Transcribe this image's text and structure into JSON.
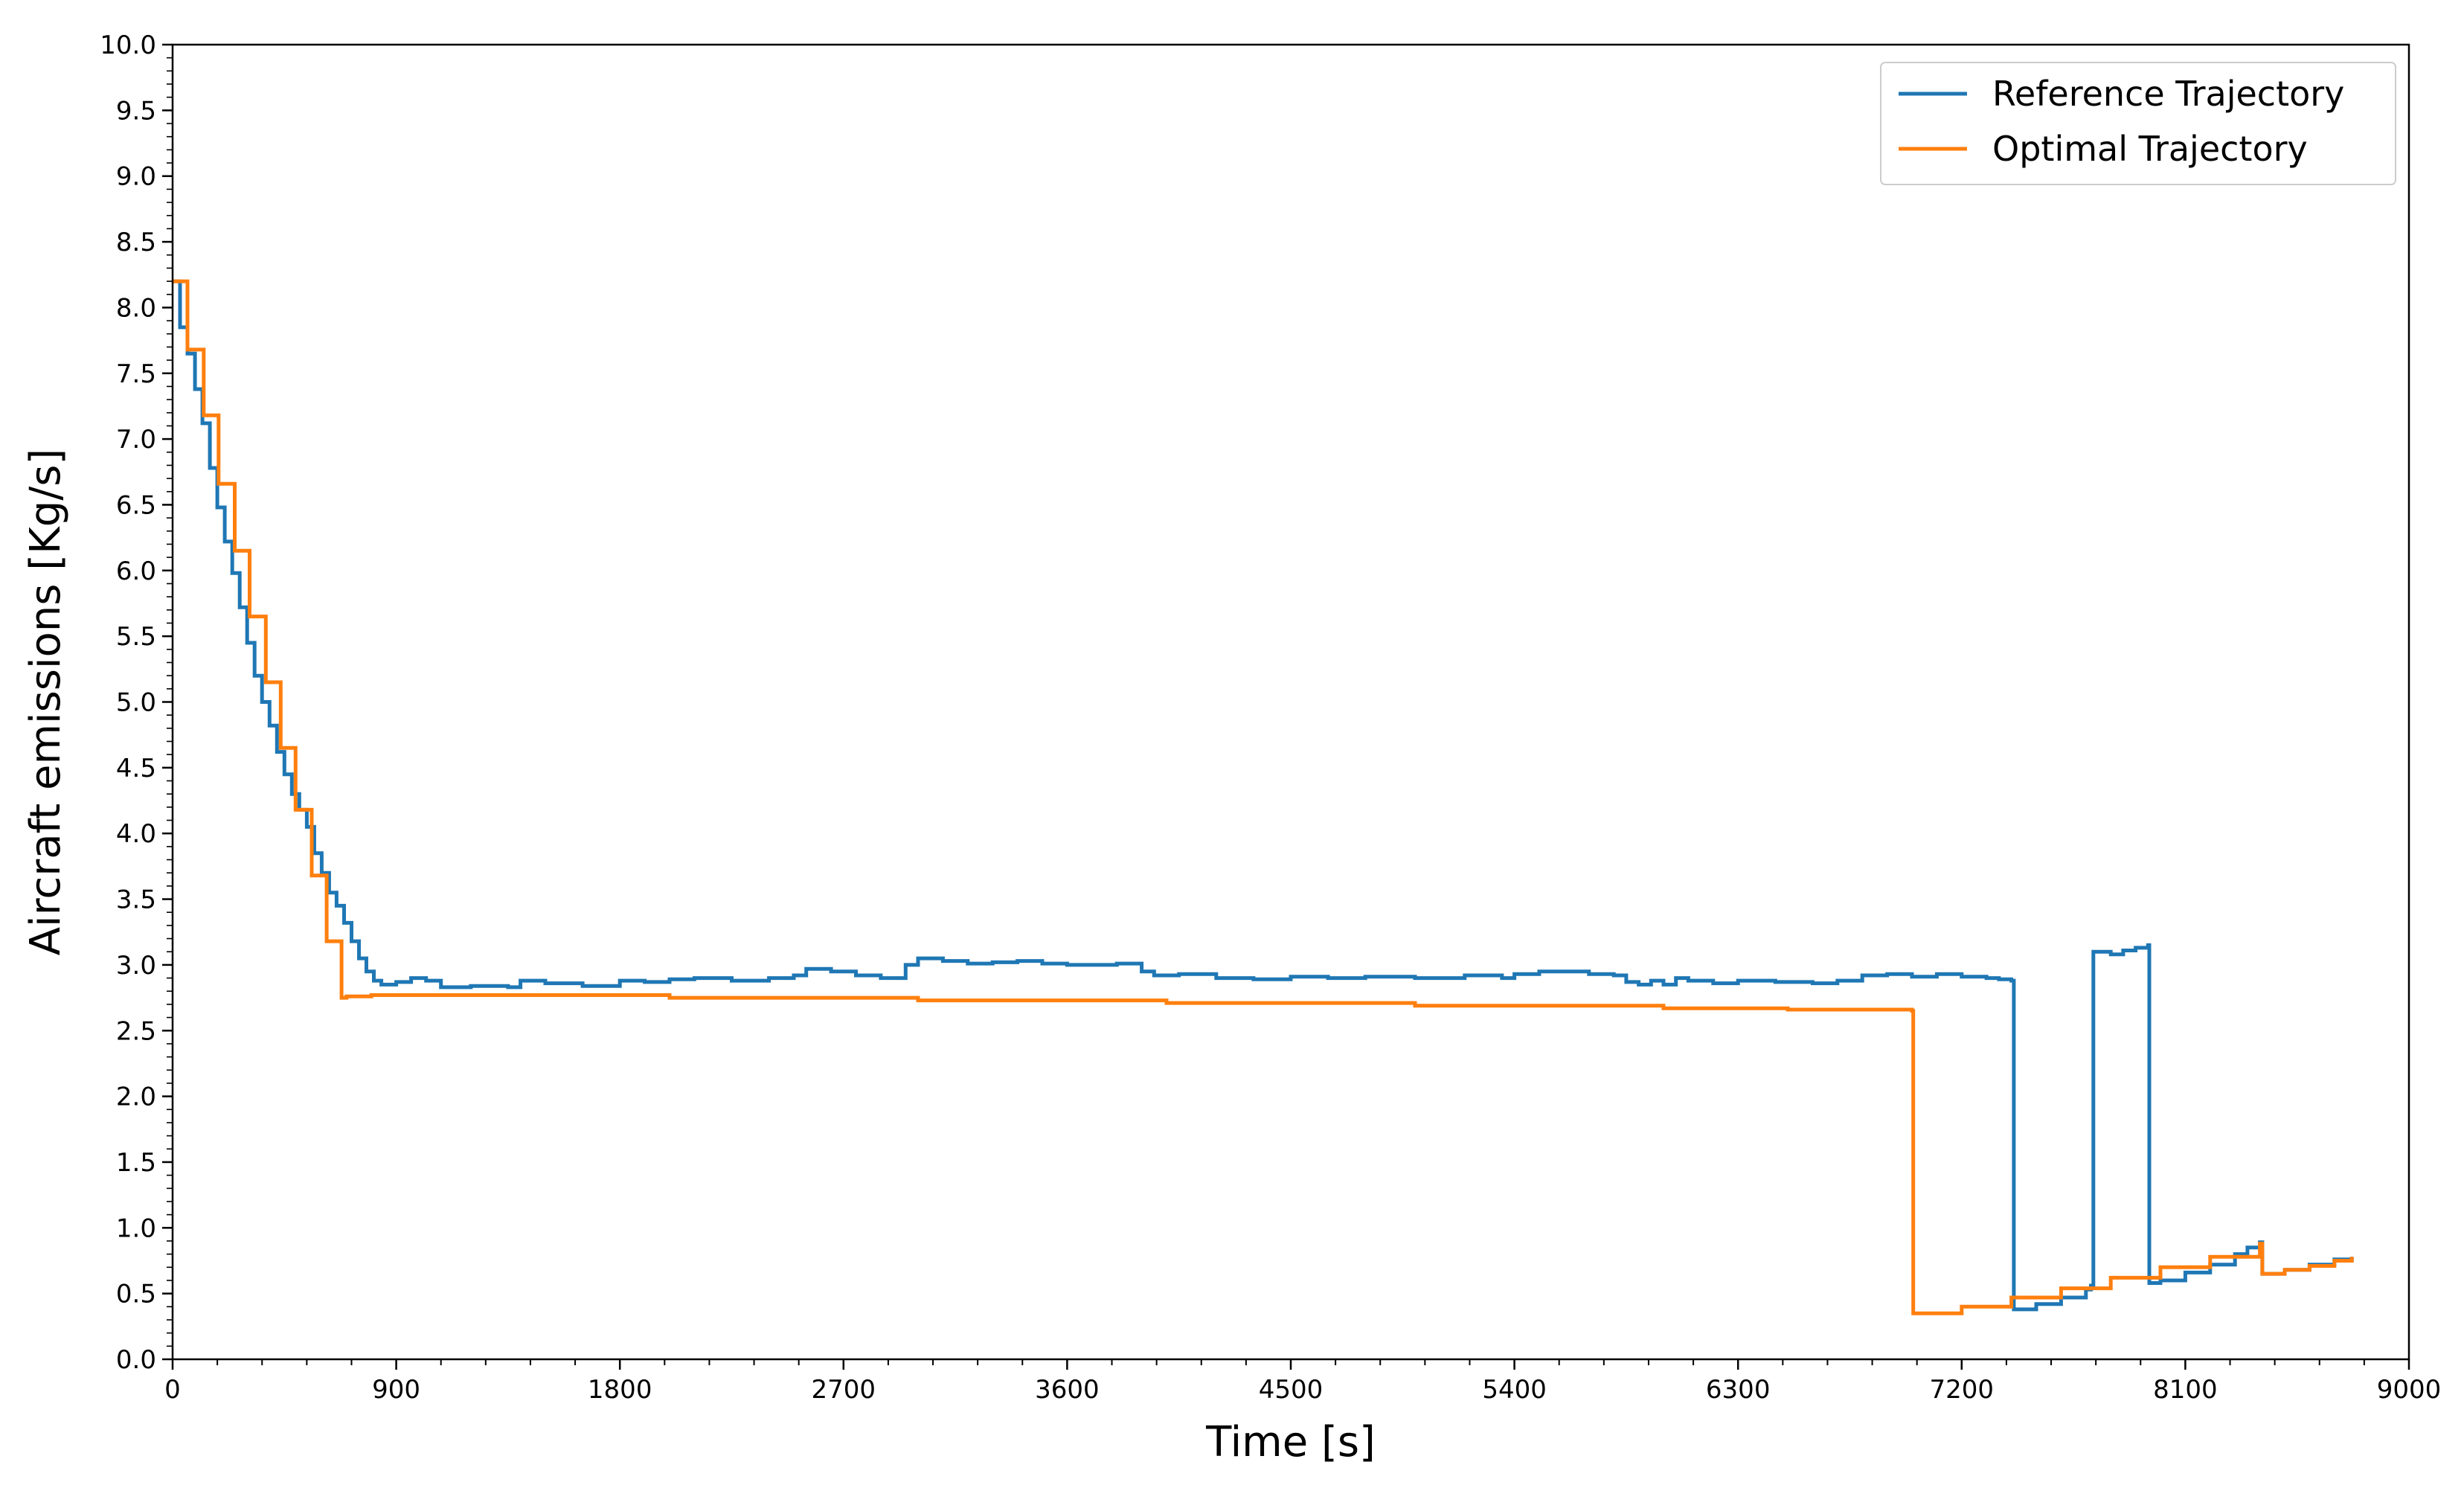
{
  "chart_data": {
    "type": "line",
    "title": "",
    "xlabel": "Time [s]",
    "ylabel": "Aircraft emissions [Kg/s]",
    "xlim": [
      0,
      9000
    ],
    "ylim": [
      0,
      10
    ],
    "xticks": [
      0,
      900,
      1800,
      2700,
      3600,
      4500,
      5400,
      6300,
      7200,
      8100,
      9000
    ],
    "xtick_labels": [
      "0",
      "900",
      "1800",
      "2700",
      "3600",
      "4500",
      "5400",
      "6300",
      "7200",
      "8100",
      "9000"
    ],
    "yticks": [
      0,
      0.5,
      1,
      1.5,
      2,
      2.5,
      3,
      3.5,
      4,
      4.5,
      5,
      5.5,
      6,
      6.5,
      7,
      7.5,
      8,
      8.5,
      9,
      9.5,
      10
    ],
    "ytick_labels": [
      "0.0",
      "0.5",
      "1.0",
      "1.5",
      "2.0",
      "2.5",
      "3.0",
      "3.5",
      "4.0",
      "4.5",
      "5.0",
      "5.5",
      "6.0",
      "6.5",
      "7.0",
      "7.5",
      "8.0",
      "8.5",
      "9.0",
      "9.5",
      "10.0"
    ],
    "grid": false,
    "legend_position": "top-right",
    "series": [
      {
        "name": "Reference Trajectory",
        "color": "#1f77b4",
        "step": true,
        "points": [
          [
            0,
            8.2
          ],
          [
            30,
            7.85
          ],
          [
            60,
            7.65
          ],
          [
            90,
            7.38
          ],
          [
            120,
            7.12
          ],
          [
            150,
            6.78
          ],
          [
            180,
            6.48
          ],
          [
            210,
            6.22
          ],
          [
            240,
            5.98
          ],
          [
            270,
            5.72
          ],
          [
            300,
            5.45
          ],
          [
            330,
            5.2
          ],
          [
            360,
            5.0
          ],
          [
            390,
            4.82
          ],
          [
            420,
            4.62
          ],
          [
            450,
            4.45
          ],
          [
            480,
            4.3
          ],
          [
            510,
            4.18
          ],
          [
            540,
            4.05
          ],
          [
            570,
            3.85
          ],
          [
            600,
            3.7
          ],
          [
            630,
            3.55
          ],
          [
            660,
            3.45
          ],
          [
            690,
            3.32
          ],
          [
            720,
            3.18
          ],
          [
            750,
            3.05
          ],
          [
            780,
            2.95
          ],
          [
            810,
            2.88
          ],
          [
            840,
            2.85
          ],
          [
            900,
            2.87
          ],
          [
            960,
            2.9
          ],
          [
            1020,
            2.88
          ],
          [
            1080,
            2.83
          ],
          [
            1200,
            2.84
          ],
          [
            1350,
            2.83
          ],
          [
            1400,
            2.88
          ],
          [
            1500,
            2.86
          ],
          [
            1650,
            2.84
          ],
          [
            1800,
            2.88
          ],
          [
            1900,
            2.87
          ],
          [
            2000,
            2.89
          ],
          [
            2100,
            2.9
          ],
          [
            2250,
            2.88
          ],
          [
            2400,
            2.9
          ],
          [
            2500,
            2.92
          ],
          [
            2550,
            2.97
          ],
          [
            2650,
            2.95
          ],
          [
            2750,
            2.92
          ],
          [
            2850,
            2.9
          ],
          [
            2950,
            3.0
          ],
          [
            3000,
            3.05
          ],
          [
            3100,
            3.03
          ],
          [
            3200,
            3.01
          ],
          [
            3300,
            3.02
          ],
          [
            3400,
            3.03
          ],
          [
            3500,
            3.01
          ],
          [
            3600,
            3.0
          ],
          [
            3700,
            3.0
          ],
          [
            3800,
            3.01
          ],
          [
            3900,
            2.95
          ],
          [
            3950,
            2.92
          ],
          [
            4050,
            2.93
          ],
          [
            4200,
            2.9
          ],
          [
            4350,
            2.89
          ],
          [
            4500,
            2.91
          ],
          [
            4650,
            2.9
          ],
          [
            4800,
            2.91
          ],
          [
            5000,
            2.9
          ],
          [
            5200,
            2.92
          ],
          [
            5350,
            2.9
          ],
          [
            5400,
            2.93
          ],
          [
            5500,
            2.95
          ],
          [
            5700,
            2.93
          ],
          [
            5800,
            2.92
          ],
          [
            5850,
            2.87
          ],
          [
            5900,
            2.85
          ],
          [
            5950,
            2.88
          ],
          [
            6000,
            2.85
          ],
          [
            6050,
            2.9
          ],
          [
            6100,
            2.88
          ],
          [
            6200,
            2.86
          ],
          [
            6300,
            2.88
          ],
          [
            6450,
            2.87
          ],
          [
            6600,
            2.86
          ],
          [
            6700,
            2.88
          ],
          [
            6800,
            2.92
          ],
          [
            6900,
            2.93
          ],
          [
            7000,
            2.91
          ],
          [
            7100,
            2.93
          ],
          [
            7200,
            2.91
          ],
          [
            7300,
            2.9
          ],
          [
            7350,
            2.89
          ],
          [
            7400,
            2.88
          ],
          [
            7410,
            0.38
          ],
          [
            7500,
            0.42
          ],
          [
            7600,
            0.47
          ],
          [
            7700,
            0.53
          ],
          [
            7720,
            0.56
          ],
          [
            7730,
            3.1
          ],
          [
            7800,
            3.08
          ],
          [
            7850,
            3.11
          ],
          [
            7900,
            3.13
          ],
          [
            7950,
            3.15
          ],
          [
            7955,
            0.58
          ],
          [
            8000,
            0.6
          ],
          [
            8100,
            0.66
          ],
          [
            8200,
            0.72
          ],
          [
            8300,
            0.8
          ],
          [
            8350,
            0.85
          ],
          [
            8400,
            0.89
          ],
          [
            8410,
            0.65
          ],
          [
            8500,
            0.68
          ],
          [
            8600,
            0.72
          ],
          [
            8700,
            0.76
          ],
          [
            8770,
            0.78
          ]
        ]
      },
      {
        "name": "Optimal Trajectory",
        "color": "#ff7f0e",
        "step": true,
        "points": [
          [
            0,
            8.2
          ],
          [
            60,
            7.68
          ],
          [
            125,
            7.18
          ],
          [
            185,
            6.66
          ],
          [
            250,
            6.15
          ],
          [
            310,
            5.65
          ],
          [
            375,
            5.15
          ],
          [
            435,
            4.65
          ],
          [
            495,
            4.18
          ],
          [
            560,
            3.68
          ],
          [
            620,
            3.18
          ],
          [
            680,
            2.75
          ],
          [
            700,
            2.76
          ],
          [
            800,
            2.77
          ],
          [
            1000,
            2.77
          ],
          [
            2000,
            2.75
          ],
          [
            3000,
            2.73
          ],
          [
            4000,
            2.71
          ],
          [
            5000,
            2.69
          ],
          [
            6000,
            2.67
          ],
          [
            6500,
            2.66
          ],
          [
            7000,
            2.65
          ],
          [
            7005,
            0.35
          ],
          [
            7200,
            0.4
          ],
          [
            7400,
            0.47
          ],
          [
            7600,
            0.54
          ],
          [
            7800,
            0.62
          ],
          [
            8000,
            0.7
          ],
          [
            8200,
            0.78
          ],
          [
            8400,
            0.88
          ],
          [
            8410,
            0.65
          ],
          [
            8500,
            0.68
          ],
          [
            8600,
            0.71
          ],
          [
            8700,
            0.75
          ],
          [
            8770,
            0.78
          ]
        ]
      }
    ]
  }
}
